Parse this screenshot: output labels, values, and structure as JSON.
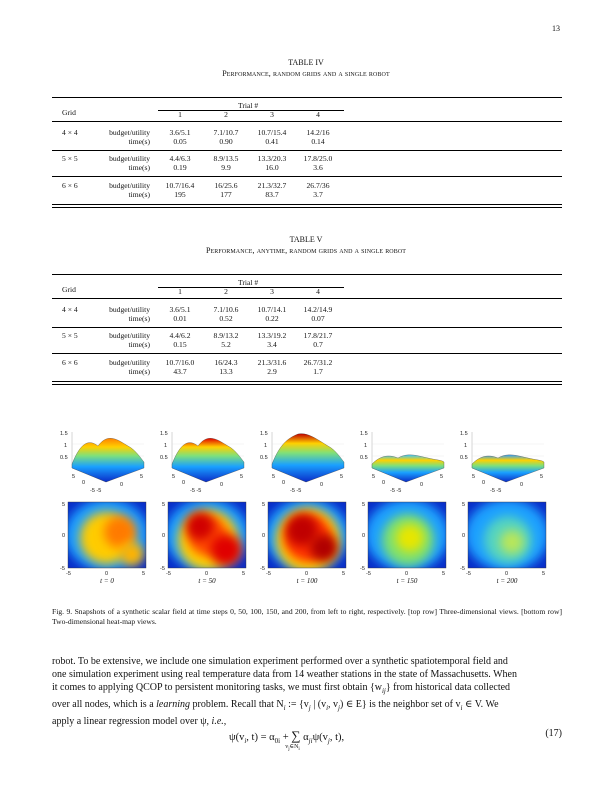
{
  "page_number": "13",
  "table4": {
    "label": "TABLE IV",
    "title": "Performance, random grids and a single robot",
    "header_grid": "Grid",
    "header_trial": "Trial #",
    "trials": [
      "1",
      "2",
      "3",
      "4"
    ],
    "rows": [
      {
        "grid": "4 × 4",
        "budget_label": "budget/utility",
        "time_label": "time(s)",
        "budget": [
          "3.6/5.1",
          "7.1/10.7",
          "10.7/15.4",
          "14.2/16"
        ],
        "time": [
          "0.05",
          "0.90",
          "0.41",
          "0.14"
        ]
      },
      {
        "grid": "5 × 5",
        "budget_label": "budget/utility",
        "time_label": "time(s)",
        "budget": [
          "4.4/6.3",
          "8.9/13.5",
          "13.3/20.3",
          "17.8/25.0"
        ],
        "time": [
          "0.19",
          "9.9",
          "16.0",
          "3.6"
        ]
      },
      {
        "grid": "6 × 6",
        "budget_label": "budget/utility",
        "time_label": "time(s)",
        "budget": [
          "10.7/16.4",
          "16/25.6",
          "21.3/32.7",
          "26.7/36"
        ],
        "time": [
          "195",
          "177",
          "83.7",
          "3.7"
        ]
      }
    ]
  },
  "table5": {
    "label": "TABLE V",
    "title": "Performance, anytime, random grids and a single robot",
    "header_grid": "Grid",
    "header_trial": "Trial #",
    "trials": [
      "1",
      "2",
      "3",
      "4"
    ],
    "rows": [
      {
        "grid": "4 × 4",
        "budget_label": "budget/utility",
        "time_label": "time(s)",
        "budget": [
          "3.6/5.1",
          "7.1/10.6",
          "10.7/14.1",
          "14.2/14.9"
        ],
        "time": [
          "0.01",
          "0.52",
          "0.22",
          "0.07"
        ]
      },
      {
        "grid": "5 × 5",
        "budget_label": "budget/utility",
        "time_label": "time(s)",
        "budget": [
          "4.4/6.2",
          "8.9/13.2",
          "13.3/19.2",
          "17.8/21.7"
        ],
        "time": [
          "0.15",
          "5.2",
          "3.4",
          "0.7"
        ]
      },
      {
        "grid": "6 × 6",
        "budget_label": "budget/utility",
        "time_label": "time(s)",
        "budget": [
          "10.7/16.0",
          "16/24.3",
          "21.3/31.6",
          "26.7/31.2"
        ],
        "time": [
          "43.7",
          "13.3",
          "2.9",
          "1.7"
        ]
      }
    ]
  },
  "figure": {
    "time_labels": [
      "t = 0",
      "t = 50",
      "t = 100",
      "t = 150",
      "t = 200"
    ],
    "z_ticks": [
      "1.5",
      "1",
      "0.5"
    ],
    "xy_ticks": [
      "5",
      "0",
      "-5",
      "-5",
      "0",
      "5"
    ],
    "heat_ticks_y": [
      "5",
      "0",
      "-5"
    ],
    "heat_ticks_x": [
      "-5",
      "0",
      "5"
    ],
    "caption": "Fig. 9.  Snapshots of a synthetic scalar field at time steps 0, 50, 100, 150, and 200, from left to right, respectively. [top row] Three-dimensional views. [bottom row] Two-dimensional heat-map views."
  },
  "body": {
    "line1": "robot. To be extensive, we include one simulation experiment performed over a synthetic spatiotemporal field and",
    "line2": "one simulation experiment using real temperature data from 14 weather stations in the state of Massachusetts. When",
    "line3": "it comes to applying QCOP to persistent monitoring tasks, we must first obtain {w",
    "line3b": "} from historical data collected",
    "line4a": "over all nodes, which is a ",
    "line4b": "learning",
    "line4c": " problem. Recall that N",
    "line4d": " := {v",
    "line4e": " | (v",
    "line4f": ") ∈ E} is the neighbor set of v",
    "line4g": " ∈ V. We",
    "line5a": "apply a linear regression model over ψ, ",
    "line5b": "i.e.,",
    "equation_lhs": "ψ(v",
    "equation_mid": ", t) = α",
    "equation_sum": "∑",
    "equation_sum_sub": "v",
    "equation_rhs": "ψ(v",
    "equation_end": ", t),",
    "equation_number": "(17)"
  }
}
